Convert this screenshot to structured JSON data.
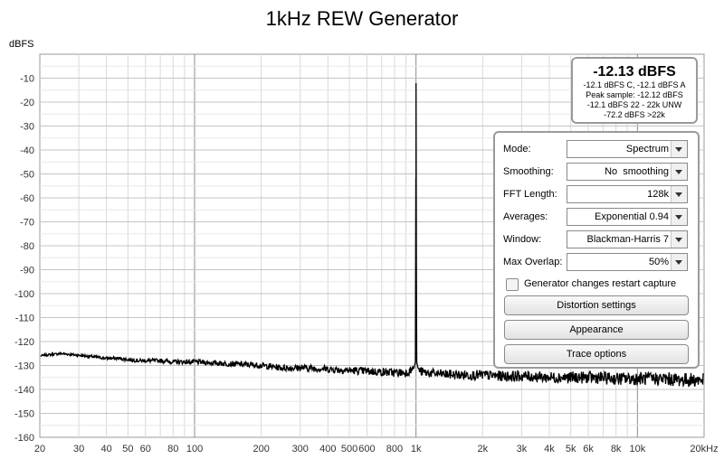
{
  "chart_data": {
    "type": "line",
    "title": "1kHz REW Generator",
    "ylabel": "dBFS",
    "xlabel": "",
    "x_scale": "log",
    "xlim": [
      20,
      20000
    ],
    "ylim": [
      -160,
      0
    ],
    "grid": true,
    "y_ticks": [
      -10,
      -20,
      -30,
      -40,
      -50,
      -60,
      -70,
      -80,
      -90,
      -100,
      -110,
      -120,
      -130,
      -140,
      -150,
      -160
    ],
    "y_tick_labels": [
      "-10",
      "-20",
      "-30",
      "-40",
      "-50",
      "-60",
      "-70",
      "-80",
      "-90",
      "-100",
      "-110",
      "-120",
      "-130",
      "-140",
      "-150",
      "-160"
    ],
    "x_ticks": [
      20,
      30,
      40,
      50,
      60,
      80,
      100,
      200,
      300,
      400,
      500,
      600,
      800,
      1000,
      2000,
      3000,
      4000,
      5000,
      6000,
      8000,
      10000,
      20000
    ],
    "x_tick_labels": [
      "20",
      "30",
      "40",
      "50",
      "60",
      "80",
      "100",
      "200",
      "300",
      "400",
      "500",
      "600",
      "800",
      "1k",
      "2k",
      "3k",
      "4k",
      "5k",
      "6k",
      "8k",
      "10k",
      "20kHz"
    ],
    "series": [
      {
        "color": "#000000",
        "x": [
          20,
          22,
          25,
          28,
          32,
          36,
          40,
          45,
          50,
          56,
          63,
          71,
          80,
          90,
          100,
          125,
          160,
          200,
          250,
          315,
          400,
          500,
          630,
          800,
          900,
          950,
          980,
          995,
          1000,
          1005,
          1020,
          1050,
          1100,
          1250,
          1600,
          2000,
          2500,
          3150,
          4000,
          5000,
          6300,
          8000,
          10000,
          12500,
          16000,
          20000
        ],
        "y": [
          -126,
          -125.5,
          -125,
          -125.5,
          -126,
          -126.5,
          -127,
          -127,
          -127.5,
          -128,
          -128,
          -128,
          -128.5,
          -128.5,
          -128.5,
          -129,
          -129.5,
          -130,
          -131,
          -131,
          -131.5,
          -132,
          -132.5,
          -133,
          -133,
          -132,
          -131,
          -128,
          -12.13,
          -128,
          -131,
          -132.5,
          -133,
          -133.5,
          -134,
          -134,
          -134.5,
          -134.5,
          -135,
          -135,
          -135,
          -135.5,
          -135.5,
          -135.5,
          -136,
          -136
        ]
      }
    ]
  },
  "level_meter": {
    "value": "-12.13 dBFS",
    "lines": [
      "-12.1 dBFS C, -12.1 dBFS A",
      "Peak sample: -12.12 dBFS",
      "-12.1 dBFS 22 - 22k UNW",
      "-72.2 dBFS >22k"
    ]
  },
  "controls": {
    "mode": {
      "label": "Mode:",
      "value": "Spectrum"
    },
    "smoothing": {
      "label": "Smoothing:",
      "value": "No  smoothing"
    },
    "fft_length": {
      "label": "FFT Length:",
      "value": "128k"
    },
    "averages": {
      "label": "Averages:",
      "value": "Exponential 0.94"
    },
    "window": {
      "label": "Window:",
      "value": "Blackman-Harris 7"
    },
    "max_overlap": {
      "label": "Max Overlap:",
      "value": "50%"
    },
    "restart_checkbox": {
      "label": "Generator changes restart capture",
      "checked": false
    },
    "buttons": {
      "distortion": "Distortion settings",
      "appearance": "Appearance",
      "trace_options": "Trace options"
    }
  }
}
